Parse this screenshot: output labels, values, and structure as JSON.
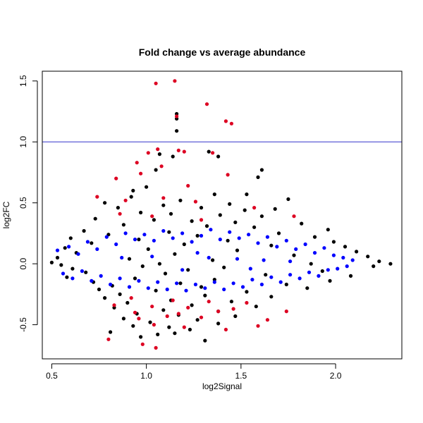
{
  "chart_data": {
    "type": "scatter",
    "title": "Fold change vs average abundance",
    "xlabel": "log2Signal",
    "ylabel": "log2FC",
    "xlim": [
      0.45,
      2.35
    ],
    "ylim": [
      -0.78,
      1.58
    ],
    "xticks": [
      "0.5",
      "1.0",
      "1.5",
      "2.0"
    ],
    "xtick_values": [
      0.5,
      1.0,
      1.5,
      2.0
    ],
    "yticks": [
      "-0.5",
      "0.0",
      "0.5",
      "1.0",
      "1.5"
    ],
    "ytick_values": [
      -0.5,
      0.0,
      0.5,
      1.0,
      1.5
    ],
    "grid": false,
    "reference_line": {
      "y": 1.0,
      "color": "#3333cc"
    },
    "series": [
      {
        "color": "#000000",
        "points": [
          [
            1.16,
            1.23
          ],
          [
            1.16,
            1.19
          ],
          [
            1.16,
            1.09
          ],
          [
            1.07,
            0.9
          ],
          [
            1.14,
            0.88
          ],
          [
            1.38,
            0.88
          ],
          [
            1.33,
            0.92
          ],
          [
            1.0,
            0.63
          ],
          [
            1.05,
            0.77
          ],
          [
            1.61,
            0.77
          ],
          [
            1.59,
            0.71
          ],
          [
            0.93,
            0.6
          ],
          [
            1.36,
            0.57
          ],
          [
            1.53,
            0.57
          ],
          [
            0.92,
            0.55
          ],
          [
            1.75,
            0.53
          ],
          [
            1.18,
            0.52
          ],
          [
            0.78,
            0.5
          ],
          [
            1.44,
            0.49
          ],
          [
            1.09,
            0.48
          ],
          [
            0.85,
            0.46
          ],
          [
            1.29,
            0.46
          ],
          [
            1.68,
            0.45
          ],
          [
            1.52,
            0.44
          ],
          [
            0.97,
            0.42
          ],
          [
            1.13,
            0.41
          ],
          [
            1.39,
            0.4
          ],
          [
            1.61,
            0.39
          ],
          [
            0.73,
            0.37
          ],
          [
            1.04,
            0.36
          ],
          [
            1.24,
            0.35
          ],
          [
            1.47,
            0.34
          ],
          [
            1.82,
            0.33
          ],
          [
            0.88,
            0.32
          ],
          [
            1.32,
            0.31
          ],
          [
            1.57,
            0.3
          ],
          [
            1.96,
            0.28
          ],
          [
            0.67,
            0.27
          ],
          [
            1.12,
            0.26
          ],
          [
            1.7,
            0.25
          ],
          [
            0.8,
            0.24
          ],
          [
            1.27,
            0.23
          ],
          [
            1.89,
            0.22
          ],
          [
            0.6,
            0.21
          ],
          [
            0.96,
            0.2
          ],
          [
            1.43,
            0.19
          ],
          [
            1.99,
            0.18
          ],
          [
            0.71,
            0.17
          ],
          [
            1.2,
            0.16
          ],
          [
            1.66,
            0.15
          ],
          [
            2.05,
            0.14
          ],
          [
            0.57,
            0.13
          ],
          [
            1.01,
            0.12
          ],
          [
            1.48,
            0.11
          ],
          [
            2.11,
            0.1
          ],
          [
            0.63,
            0.09
          ],
          [
            1.15,
            0.08
          ],
          [
            1.78,
            0.07
          ],
          [
            2.17,
            0.06
          ],
          [
            0.53,
            0.05
          ],
          [
            0.91,
            0.04
          ],
          [
            1.35,
            0.03
          ],
          [
            2.23,
            0.02
          ],
          [
            0.5,
            0.01
          ],
          [
            1.07,
            0.0
          ],
          [
            1.87,
            0.0
          ],
          [
            2.29,
            0.0
          ],
          [
            0.55,
            -0.01
          ],
          [
            0.98,
            -0.02
          ],
          [
            1.41,
            -0.03
          ],
          [
            2.2,
            -0.02
          ],
          [
            0.61,
            -0.04
          ],
          [
            1.22,
            -0.05
          ],
          [
            1.93,
            -0.06
          ],
          [
            0.68,
            -0.07
          ],
          [
            1.1,
            -0.08
          ],
          [
            1.63,
            -0.09
          ],
          [
            2.08,
            -0.1
          ],
          [
            0.58,
            -0.11
          ],
          [
            0.94,
            -0.12
          ],
          [
            1.36,
            -0.13
          ],
          [
            1.97,
            -0.14
          ],
          [
            0.72,
            -0.15
          ],
          [
            1.18,
            -0.16
          ],
          [
            1.74,
            -0.17
          ],
          [
            0.82,
            -0.18
          ],
          [
            1.29,
            -0.19
          ],
          [
            1.85,
            -0.2
          ],
          [
            0.75,
            -0.21
          ],
          [
            1.05,
            -0.22
          ],
          [
            1.53,
            -0.23
          ],
          [
            0.86,
            -0.25
          ],
          [
            1.31,
            -0.26
          ],
          [
            1.66,
            -0.27
          ],
          [
            0.78,
            -0.28
          ],
          [
            1.13,
            -0.3
          ],
          [
            1.45,
            -0.31
          ],
          [
            0.9,
            -0.32
          ],
          [
            1.24,
            -0.34
          ],
          [
            1.58,
            -0.35
          ],
          [
            0.83,
            -0.36
          ],
          [
            1.09,
            -0.38
          ],
          [
            1.38,
            -0.39
          ],
          [
            0.95,
            -0.41
          ],
          [
            1.17,
            -0.42
          ],
          [
            1.47,
            -0.43
          ],
          [
            0.88,
            -0.45
          ],
          [
            1.27,
            -0.46
          ],
          [
            1.02,
            -0.48
          ],
          [
            1.38,
            -0.49
          ],
          [
            0.93,
            -0.51
          ],
          [
            1.12,
            -0.52
          ],
          [
            1.23,
            -0.54
          ],
          [
            0.81,
            -0.56
          ],
          [
            1.06,
            -0.58
          ],
          [
            1.31,
            -0.63
          ],
          [
            0.97,
            -0.6
          ],
          [
            1.15,
            -0.57
          ]
        ]
      },
      {
        "color": "#0000ff",
        "points": [
          [
            0.53,
            0.11
          ],
          [
            0.59,
            0.14
          ],
          [
            0.64,
            0.08
          ],
          [
            0.69,
            0.18
          ],
          [
            0.74,
            0.12
          ],
          [
            0.79,
            0.22
          ],
          [
            0.84,
            0.16
          ],
          [
            0.89,
            0.25
          ],
          [
            0.94,
            0.2
          ],
          [
            0.99,
            0.24
          ],
          [
            1.04,
            0.19
          ],
          [
            1.09,
            0.27
          ],
          [
            1.14,
            0.21
          ],
          [
            1.19,
            0.25
          ],
          [
            1.24,
            0.18
          ],
          [
            1.29,
            0.23
          ],
          [
            1.34,
            0.28
          ],
          [
            1.39,
            0.2
          ],
          [
            1.44,
            0.26
          ],
          [
            1.49,
            0.21
          ],
          [
            1.54,
            0.24
          ],
          [
            1.59,
            0.17
          ],
          [
            1.64,
            0.22
          ],
          [
            1.69,
            0.14
          ],
          [
            1.74,
            0.19
          ],
          [
            1.79,
            0.12
          ],
          [
            1.84,
            0.16
          ],
          [
            1.89,
            0.09
          ],
          [
            1.94,
            0.13
          ],
          [
            1.99,
            0.07
          ],
          [
            2.04,
            0.05
          ],
          [
            2.09,
            0.03
          ],
          [
            0.56,
            -0.08
          ],
          [
            0.61,
            -0.12
          ],
          [
            0.66,
            -0.06
          ],
          [
            0.71,
            -0.14
          ],
          [
            0.76,
            -0.1
          ],
          [
            0.81,
            -0.17
          ],
          [
            0.86,
            -0.12
          ],
          [
            0.91,
            -0.19
          ],
          [
            0.96,
            -0.14
          ],
          [
            1.01,
            -0.2
          ],
          [
            1.06,
            -0.15
          ],
          [
            1.11,
            -0.21
          ],
          [
            1.16,
            -0.16
          ],
          [
            1.21,
            -0.22
          ],
          [
            1.26,
            -0.17
          ],
          [
            1.31,
            -0.2
          ],
          [
            1.36,
            -0.15
          ],
          [
            1.41,
            -0.21
          ],
          [
            1.46,
            -0.16
          ],
          [
            1.51,
            -0.19
          ],
          [
            1.56,
            -0.13
          ],
          [
            1.61,
            -0.17
          ],
          [
            1.66,
            -0.11
          ],
          [
            1.71,
            -0.15
          ],
          [
            1.76,
            -0.09
          ],
          [
            1.81,
            -0.12
          ],
          [
            1.86,
            -0.07
          ],
          [
            1.91,
            -0.1
          ],
          [
            1.96,
            -0.05
          ],
          [
            2.01,
            -0.04
          ],
          [
            2.06,
            -0.02
          ],
          [
            1.27,
            0.09
          ],
          [
            1.33,
            0.05
          ],
          [
            1.48,
            0.04
          ],
          [
            1.62,
            0.03
          ],
          [
            1.03,
            0.06
          ],
          [
            0.87,
            0.05
          ],
          [
            1.19,
            -0.05
          ],
          [
            1.55,
            -0.04
          ],
          [
            1.76,
            0.02
          ]
        ]
      },
      {
        "color": "#dd0022",
        "points": [
          [
            1.15,
            1.5
          ],
          [
            1.05,
            1.48
          ],
          [
            1.32,
            1.31
          ],
          [
            1.16,
            1.21
          ],
          [
            1.42,
            1.17
          ],
          [
            1.45,
            1.15
          ],
          [
            1.06,
            0.94
          ],
          [
            1.17,
            0.93
          ],
          [
            1.2,
            0.92
          ],
          [
            1.01,
            0.91
          ],
          [
            1.35,
            0.91
          ],
          [
            0.95,
            0.83
          ],
          [
            1.08,
            0.8
          ],
          [
            0.97,
            0.74
          ],
          [
            1.43,
            0.73
          ],
          [
            0.84,
            0.7
          ],
          [
            1.22,
            0.64
          ],
          [
            0.74,
            0.55
          ],
          [
            0.89,
            0.52
          ],
          [
            1.09,
            0.54
          ],
          [
            1.26,
            0.51
          ],
          [
            1.57,
            0.46
          ],
          [
            0.86,
            0.41
          ],
          [
            1.03,
            0.39
          ],
          [
            1.29,
            0.36
          ],
          [
            1.78,
            0.39
          ],
          [
            0.92,
            -0.28
          ],
          [
            1.14,
            -0.3
          ],
          [
            1.33,
            -0.31
          ],
          [
            1.53,
            -0.32
          ],
          [
            0.83,
            -0.34
          ],
          [
            1.03,
            -0.35
          ],
          [
            1.22,
            -0.36
          ],
          [
            1.46,
            -0.37
          ],
          [
            0.94,
            -0.4
          ],
          [
            1.17,
            -0.41
          ],
          [
            1.38,
            -0.39
          ],
          [
            1.74,
            -0.39
          ],
          [
            1.11,
            -0.43
          ],
          [
            1.29,
            -0.44
          ],
          [
            0.96,
            -0.45
          ],
          [
            1.64,
            -0.46
          ],
          [
            1.04,
            -0.5
          ],
          [
            1.2,
            -0.52
          ],
          [
            1.42,
            -0.54
          ],
          [
            1.59,
            -0.51
          ],
          [
            0.8,
            -0.62
          ],
          [
            1.05,
            -0.69
          ],
          [
            0.98,
            -0.66
          ]
        ]
      }
    ]
  }
}
